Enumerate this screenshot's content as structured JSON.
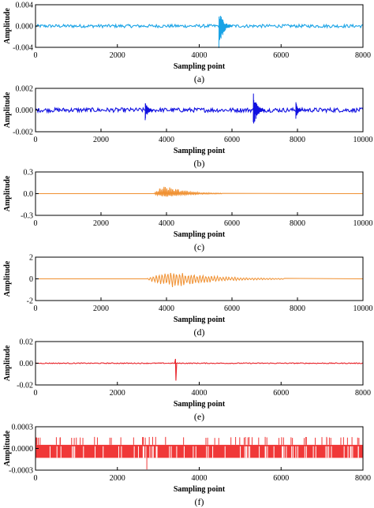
{
  "chart_data": [
    {
      "type": "line",
      "panel_label": "(a)",
      "xlabel": "Sampling point",
      "ylabel": "Amplitude",
      "xlim": [
        0,
        8000
      ],
      "ylim": [
        -0.004,
        0.004
      ],
      "xticks": [
        0,
        2000,
        4000,
        6000,
        8000
      ],
      "xtick_labels": [
        "0",
        "2000",
        "4000",
        "6000",
        "8000"
      ],
      "yticks": [
        -0.004,
        0.0,
        0.004
      ],
      "ytick_labels": [
        "-0.004",
        "0.000",
        "0.004"
      ],
      "color": "#19a3e6",
      "series": [
        {
          "signal": "low-level noise",
          "x_range": [
            0,
            8000
          ],
          "amplitude": 0.0003
        },
        {
          "signal": "burst",
          "x_range": [
            4480,
            4800
          ],
          "peak_value": 0.0032,
          "min_value": -0.0045
        }
      ]
    },
    {
      "type": "line",
      "panel_label": "(b)",
      "xlabel": "Sampling point",
      "ylabel": "Amplitude",
      "xlim": [
        0,
        10000
      ],
      "ylim": [
        -0.002,
        0.002
      ],
      "xticks": [
        0,
        2000,
        4000,
        6000,
        8000,
        10000
      ],
      "xtick_labels": [
        "0",
        "2000",
        "4000",
        "6000",
        "8000",
        "10000"
      ],
      "yticks": [
        -0.002,
        0.0,
        0.002
      ],
      "ytick_labels": [
        "-0.002",
        "0.000",
        "0.002"
      ],
      "color": "#1010e0",
      "series": [
        {
          "signal": "low-level noise",
          "x_range": [
            0,
            10000
          ],
          "amplitude": 0.0002
        },
        {
          "signal": "burst",
          "x_range": [
            3350,
            3600
          ],
          "peak_value": 0.0008,
          "min_value": -0.001
        },
        {
          "signal": "burst",
          "x_range": [
            6650,
            7000
          ],
          "peak_value": 0.0017,
          "min_value": -0.0018
        },
        {
          "signal": "burst",
          "x_range": [
            7950,
            8150
          ],
          "peak_value": 0.0008,
          "min_value": -0.0009
        }
      ]
    },
    {
      "type": "line",
      "panel_label": "(c)",
      "xlabel": "Sampling point",
      "ylabel": "Amplitude",
      "xlim": [
        0,
        10000
      ],
      "ylim": [
        -0.3,
        0.3
      ],
      "xticks": [
        0,
        2000,
        4000,
        6000,
        8000,
        10000
      ],
      "xtick_labels": [
        "0",
        "2000",
        "4000",
        "6000",
        "8000",
        "10000"
      ],
      "yticks": [
        -0.3,
        0.0,
        0.3
      ],
      "ytick_labels": [
        "-0.3",
        "0.0",
        "0.3"
      ],
      "color": "#f09030",
      "series": [
        {
          "signal": "decaying oscillation",
          "x_range": [
            3600,
            5700
          ],
          "peak_value": 0.23,
          "min_value": -0.1
        }
      ]
    },
    {
      "type": "line",
      "panel_label": "(d)",
      "xlabel": "Sampling point",
      "ylabel": "Amplitude",
      "xlim": [
        0,
        10000
      ],
      "ylim": [
        -2,
        2
      ],
      "xticks": [
        0,
        2000,
        4000,
        6000,
        8000,
        10000
      ],
      "xtick_labels": [
        "0",
        "2000",
        "4000",
        "6000",
        "8000",
        "10000"
      ],
      "yticks": [
        -2,
        0,
        2
      ],
      "ytick_labels": [
        "-2",
        "0",
        "2"
      ],
      "color": "#f09030",
      "series": [
        {
          "signal": "decaying oscillation",
          "x_range": [
            3400,
            7600
          ],
          "peak_value": 1.45,
          "min_value": -1.7
        }
      ]
    },
    {
      "type": "line",
      "panel_label": "(e)",
      "xlabel": "Sampling point",
      "ylabel": "Amplitude",
      "xlim": [
        0,
        8000
      ],
      "ylim": [
        -0.02,
        0.02
      ],
      "xticks": [
        0,
        2000,
        4000,
        6000,
        8000
      ],
      "xtick_labels": [
        "0",
        "2000",
        "4000",
        "6000",
        "8000"
      ],
      "yticks": [
        -0.02,
        0.0,
        0.02
      ],
      "ytick_labels": [
        "-0.02",
        "0.00",
        "0.02"
      ],
      "color": "#e8232a",
      "series": [
        {
          "signal": "low-level noise",
          "x_range": [
            0,
            8000
          ],
          "amplitude": 0.0004
        },
        {
          "signal": "spike",
          "x": 3420,
          "peak_value": 0.004,
          "min_value": -0.016
        }
      ]
    },
    {
      "type": "line",
      "panel_label": "(f)",
      "xlabel": "Sampling point",
      "ylabel": "Amplitude",
      "xlim": [
        0,
        8000
      ],
      "ylim": [
        -0.0003,
        0.0003
      ],
      "xticks": [
        0,
        2000,
        4000,
        6000,
        8000
      ],
      "xtick_labels": [
        "0",
        "2000",
        "4000",
        "6000",
        "8000"
      ],
      "yticks": [
        -0.0003,
        0.0,
        0.0003
      ],
      "ytick_labels": [
        "-0.0003",
        "0.0000",
        "0.0003"
      ],
      "color": "#f03838",
      "series": [
        {
          "signal": "dense noise band",
          "x_range": [
            0,
            8000
          ],
          "band_range": [
            -0.00013,
            5e-05
          ],
          "spike_max": 0.00016,
          "min_value": -0.00029
        }
      ]
    }
  ]
}
